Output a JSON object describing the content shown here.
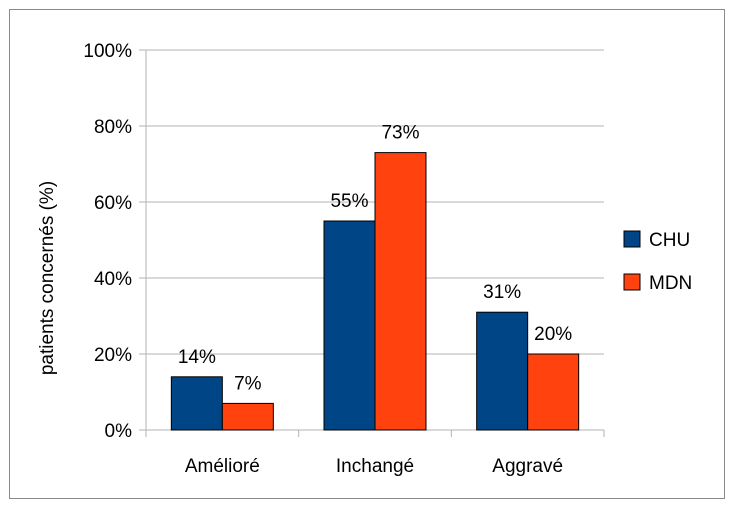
{
  "chart_data": {
    "type": "bar",
    "title": "",
    "xlabel": "",
    "ylabel": "patients concernés (%)",
    "categories": [
      "Amélioré",
      "Inchangé",
      "Aggravé"
    ],
    "series": [
      {
        "name": "CHU",
        "values": [
          14,
          55,
          31
        ],
        "labels": [
          "14%",
          "55%",
          "31%"
        ],
        "color": "#004586"
      },
      {
        "name": "MDN",
        "values": [
          7,
          73,
          20
        ],
        "labels": [
          "7%",
          "73%",
          "20%"
        ],
        "color": "#ff420e"
      }
    ],
    "ylim": [
      0,
      100
    ],
    "yticks": [
      0,
      20,
      40,
      60,
      80,
      100
    ],
    "ytick_labels": [
      "0%",
      "20%",
      "40%",
      "60%",
      "80%",
      "100%"
    ],
    "grid": true,
    "legend_position": "right"
  }
}
